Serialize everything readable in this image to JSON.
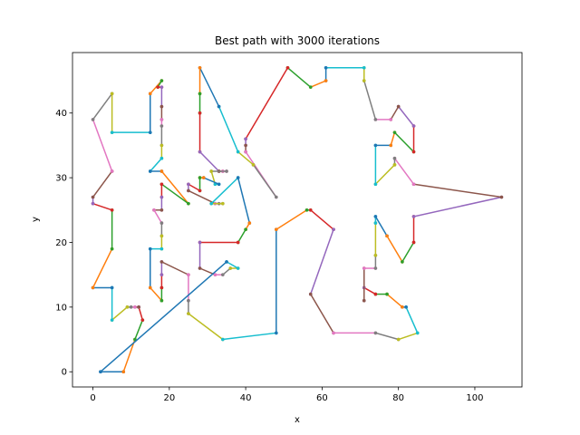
{
  "chart_data": {
    "type": "line",
    "title": "Best path with 3000 iterations",
    "xlabel": "x",
    "ylabel": "y",
    "xlim": [
      -5.35,
      112.35
    ],
    "ylim": [
      -2.35,
      49.35
    ],
    "xticks": [
      0,
      20,
      40,
      60,
      80,
      100
    ],
    "yticks": [
      0,
      10,
      20,
      30,
      40
    ],
    "grid": false,
    "legend": "none",
    "color_cycle": [
      "#1f77b4",
      "#ff7f0e",
      "#2ca02c",
      "#d62728",
      "#9467bd",
      "#8c564b",
      "#e377c2",
      "#7f7f7f",
      "#bcbd22",
      "#17becf"
    ],
    "path": [
      [
        2,
        0
      ],
      [
        8,
        0
      ],
      [
        11,
        5
      ],
      [
        13,
        8
      ],
      [
        12,
        10
      ],
      [
        12,
        10
      ],
      [
        11,
        10
      ],
      [
        10,
        10
      ],
      [
        9,
        10
      ],
      [
        5,
        8
      ],
      [
        5,
        13
      ],
      [
        0,
        13
      ],
      [
        5,
        19
      ],
      [
        5,
        25
      ],
      [
        0,
        26
      ],
      [
        0,
        27
      ],
      [
        5,
        31
      ],
      [
        0,
        39
      ],
      [
        5,
        43
      ],
      [
        5,
        37
      ],
      [
        15,
        37
      ],
      [
        15,
        43
      ],
      [
        18,
        45
      ],
      [
        17,
        44
      ],
      [
        18,
        44
      ],
      [
        18,
        41
      ],
      [
        18,
        39
      ],
      [
        18,
        38
      ],
      [
        18,
        35
      ],
      [
        18,
        33
      ],
      [
        15,
        31
      ],
      [
        18,
        31
      ],
      [
        25,
        26
      ],
      [
        18,
        29
      ],
      [
        18,
        27
      ],
      [
        18,
        25
      ],
      [
        16,
        25
      ],
      [
        18,
        23
      ],
      [
        18,
        21
      ],
      [
        18,
        19
      ],
      [
        15,
        19
      ],
      [
        15,
        13
      ],
      [
        18,
        11
      ],
      [
        18,
        13
      ],
      [
        18,
        15
      ],
      [
        18,
        17
      ],
      [
        25,
        15
      ],
      [
        25,
        11
      ],
      [
        25,
        9
      ],
      [
        34,
        5
      ],
      [
        48,
        6
      ],
      [
        48,
        22
      ],
      [
        56,
        25
      ],
      [
        57,
        25
      ],
      [
        63,
        22
      ],
      [
        57,
        12
      ],
      [
        63,
        6
      ],
      [
        74,
        6
      ],
      [
        80,
        5
      ],
      [
        85,
        6
      ],
      [
        82,
        10
      ],
      [
        81,
        10
      ],
      [
        77,
        12
      ],
      [
        74,
        12
      ],
      [
        71,
        13
      ],
      [
        71,
        11
      ],
      [
        71,
        16
      ],
      [
        74,
        16
      ],
      [
        74,
        18
      ],
      [
        74,
        23
      ],
      [
        74,
        24
      ],
      [
        77,
        21
      ],
      [
        81,
        17
      ],
      [
        84,
        20
      ],
      [
        84,
        24
      ],
      [
        107,
        27
      ],
      [
        84,
        29
      ],
      [
        79,
        33
      ],
      [
        79,
        32
      ],
      [
        74,
        29
      ],
      [
        74,
        35
      ],
      [
        78,
        35
      ],
      [
        79,
        37
      ],
      [
        84,
        34
      ],
      [
        84,
        38
      ],
      [
        80,
        41
      ],
      [
        78,
        39
      ],
      [
        74,
        39
      ],
      [
        71,
        45
      ],
      [
        71,
        47
      ],
      [
        61,
        47
      ],
      [
        61,
        45
      ],
      [
        57,
        44
      ],
      [
        51,
        47
      ],
      [
        40,
        36
      ],
      [
        40,
        35
      ],
      [
        40,
        34
      ],
      [
        48,
        27
      ],
      [
        42,
        32
      ],
      [
        38,
        34
      ],
      [
        33,
        41
      ],
      [
        28,
        47
      ],
      [
        28,
        43
      ],
      [
        28,
        40
      ],
      [
        28,
        34
      ],
      [
        33,
        31
      ],
      [
        34,
        31
      ],
      [
        35,
        31
      ],
      [
        31,
        31
      ],
      [
        32,
        29
      ],
      [
        33,
        29
      ],
      [
        29,
        30
      ],
      [
        28,
        30
      ],
      [
        28,
        28
      ],
      [
        25,
        29
      ],
      [
        25,
        28
      ],
      [
        32,
        26
      ],
      [
        33,
        26
      ],
      [
        34,
        26
      ],
      [
        31,
        26
      ],
      [
        38,
        30
      ],
      [
        41,
        23
      ],
      [
        40,
        22
      ],
      [
        38,
        20
      ],
      [
        28,
        20
      ],
      [
        28,
        16
      ],
      [
        32,
        15
      ],
      [
        34,
        15
      ],
      [
        36,
        16
      ],
      [
        38,
        16
      ],
      [
        35,
        17
      ],
      [
        2,
        0
      ]
    ]
  }
}
